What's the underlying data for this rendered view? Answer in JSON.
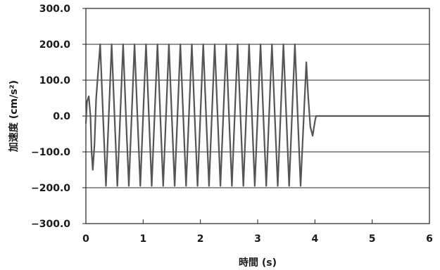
{
  "chart_data": {
    "type": "line",
    "title": "",
    "xlabel": "時間 (s)",
    "ylabel": "加速度 (cm/s²)",
    "xlim": [
      0,
      6
    ],
    "ylim": [
      -300,
      300
    ],
    "x_ticks": [
      0,
      1,
      2,
      3,
      4,
      5,
      6
    ],
    "y_ticks": [
      300,
      200,
      100,
      0,
      -100,
      -200,
      -300
    ],
    "x_tick_labels": [
      "0",
      "1",
      "2",
      "3",
      "4",
      "5",
      "6"
    ],
    "y_tick_labels": [
      "300.0",
      "200.0",
      "100.0",
      "0.0",
      "−100.0",
      "−200.0",
      "−300.0"
    ],
    "grid": {
      "horizontal": true,
      "vertical": false
    },
    "legend": "none",
    "line_color": "#555555",
    "series": [
      {
        "x": [
          0,
          0.02,
          0.05,
          0.08,
          0.1,
          0.12,
          0.15,
          0.18,
          0.25,
          0.3,
          0.35,
          0.45,
          0.5,
          0.55,
          0.65,
          0.7,
          0.75,
          0.85,
          0.9,
          0.95,
          1.05,
          1.1,
          1.15,
          1.25,
          1.3,
          1.35,
          1.45,
          1.5,
          1.55,
          1.65,
          1.7,
          1.75,
          1.85,
          1.9,
          1.95,
          2.05,
          2.1,
          2.15,
          2.25,
          2.3,
          2.35,
          2.45,
          2.5,
          2.55,
          2.65,
          2.7,
          2.75,
          2.85,
          2.9,
          2.95,
          3.05,
          3.1,
          3.15,
          3.25,
          3.3,
          3.35,
          3.45,
          3.5,
          3.55,
          3.65,
          3.7,
          3.75,
          3.85,
          3.88,
          3.92,
          3.96,
          4.0,
          4.02,
          4.1,
          6.0
        ],
        "y": [
          -20,
          40,
          55,
          0,
          -100,
          -150,
          -80,
          50,
          200,
          0,
          -195,
          200,
          0,
          -195,
          200,
          0,
          -195,
          200,
          0,
          -195,
          200,
          0,
          -195,
          200,
          0,
          -195,
          200,
          0,
          -195,
          200,
          0,
          -195,
          200,
          0,
          -195,
          200,
          0,
          -195,
          200,
          0,
          -195,
          200,
          0,
          -195,
          200,
          0,
          -195,
          200,
          0,
          -195,
          200,
          0,
          -195,
          200,
          0,
          -195,
          200,
          0,
          -195,
          200,
          0,
          -195,
          150,
          60,
          -30,
          -55,
          -15,
          0,
          0,
          0
        ]
      }
    ]
  }
}
